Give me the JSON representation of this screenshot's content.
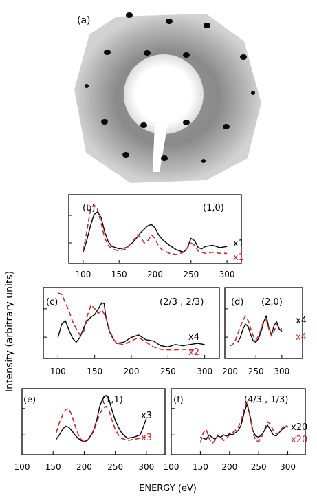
{
  "figure": {
    "ylabel": "Intensity (arbitrary units)",
    "xlabel": "ENERGY (eV)",
    "image_panel_label": "(a)"
  },
  "colors": {
    "experiment": "#000000",
    "theory": "#c62828"
  },
  "chart_data": [
    {
      "id": "b",
      "type": "line",
      "panel_label": "(b)",
      "beam": "(1,0)",
      "xlim": [
        80,
        320
      ],
      "ylim": [
        0,
        1
      ],
      "xticks": [
        100,
        150,
        200,
        250,
        300
      ],
      "scale_labels": [
        "x1",
        "x1"
      ],
      "series": [
        {
          "style": "solid",
          "x": [
            100,
            105,
            110,
            115,
            120,
            125,
            130,
            135,
            140,
            150,
            160,
            170,
            175,
            180,
            185,
            190,
            195,
            200,
            205,
            210,
            220,
            230,
            240,
            245,
            250,
            255,
            260,
            265,
            270,
            280,
            290,
            300
          ],
          "y": [
            0.1,
            0.3,
            0.55,
            0.75,
            0.8,
            0.7,
            0.45,
            0.28,
            0.2,
            0.16,
            0.18,
            0.28,
            0.36,
            0.44,
            0.5,
            0.56,
            0.58,
            0.52,
            0.4,
            0.32,
            0.22,
            0.14,
            0.1,
            0.18,
            0.34,
            0.3,
            0.18,
            0.16,
            0.2,
            0.22,
            0.18,
            0.2
          ]
        },
        {
          "style": "dashed",
          "x": [
            100,
            105,
            110,
            115,
            120,
            125,
            130,
            135,
            140,
            150,
            160,
            170,
            175,
            180,
            185,
            190,
            195,
            200,
            205,
            210,
            220,
            230,
            240,
            250,
            255,
            260,
            270,
            280,
            290,
            300
          ],
          "y": [
            0.12,
            0.45,
            0.82,
            0.92,
            0.84,
            0.6,
            0.34,
            0.22,
            0.16,
            0.12,
            0.16,
            0.3,
            0.4,
            0.36,
            0.26,
            0.3,
            0.4,
            0.34,
            0.2,
            0.14,
            0.08,
            0.06,
            0.1,
            0.26,
            0.22,
            0.12,
            0.08,
            0.1,
            0.08,
            0.08
          ]
        }
      ]
    },
    {
      "id": "c",
      "type": "line",
      "panel_label": "(c)",
      "beam": "(2/3 , 2/3)",
      "xlim": [
        80,
        320
      ],
      "ylim": [
        0,
        1
      ],
      "xticks": [
        100,
        150,
        200,
        250,
        300
      ],
      "scale_labels": [
        "x4",
        "x2"
      ],
      "series": [
        {
          "style": "solid",
          "x": [
            100,
            105,
            110,
            115,
            120,
            125,
            130,
            135,
            140,
            145,
            150,
            155,
            160,
            163,
            165,
            170,
            175,
            180,
            190,
            200,
            210,
            220,
            230,
            240,
            250,
            260,
            270,
            280,
            290,
            300
          ],
          "y": [
            0.26,
            0.48,
            0.54,
            0.38,
            0.24,
            0.18,
            0.26,
            0.42,
            0.54,
            0.6,
            0.64,
            0.74,
            0.84,
            0.82,
            0.62,
            0.36,
            0.24,
            0.16,
            0.18,
            0.26,
            0.3,
            0.22,
            0.2,
            0.12,
            0.1,
            0.14,
            0.12,
            0.14,
            0.16,
            0.14
          ]
        },
        {
          "style": "dashed",
          "x": [
            100,
            105,
            110,
            115,
            120,
            125,
            130,
            135,
            140,
            145,
            150,
            155,
            160,
            165,
            170,
            175,
            180,
            190,
            200,
            210,
            220,
            230,
            240,
            250,
            260,
            270,
            280,
            290
          ],
          "y": [
            1.0,
            0.98,
            0.84,
            0.7,
            0.52,
            0.4,
            0.3,
            0.36,
            0.62,
            0.8,
            0.74,
            0.66,
            0.72,
            0.6,
            0.4,
            0.24,
            0.16,
            0.14,
            0.2,
            0.26,
            0.18,
            0.1,
            0.06,
            0.05,
            0.05,
            0.06,
            0.05,
            0.05
          ]
        }
      ]
    },
    {
      "id": "d",
      "type": "line",
      "panel_label": "(d)",
      "beam": "(2,0)",
      "xlim": [
        190,
        340
      ],
      "ylim": [
        0,
        1
      ],
      "xticks": [
        200,
        250,
        300
      ],
      "scale_labels": [
        "x4",
        "x4"
      ],
      "series": [
        {
          "style": "solid",
          "x": [
            215,
            220,
            225,
            230,
            235,
            240,
            245,
            250,
            255,
            260,
            265,
            270,
            275,
            280,
            285,
            290,
            295,
            300
          ],
          "y": [
            0.18,
            0.26,
            0.4,
            0.48,
            0.44,
            0.3,
            0.2,
            0.18,
            0.24,
            0.36,
            0.52,
            0.62,
            0.42,
            0.3,
            0.46,
            0.52,
            0.4,
            0.36
          ]
        },
        {
          "style": "dashed",
          "x": [
            200,
            205,
            210,
            215,
            220,
            225,
            230,
            235,
            240,
            245,
            250,
            255,
            260,
            265,
            270,
            275,
            280,
            285,
            290,
            295,
            300
          ],
          "y": [
            0.12,
            0.14,
            0.2,
            0.32,
            0.44,
            0.54,
            0.62,
            0.54,
            0.4,
            0.28,
            0.22,
            0.28,
            0.4,
            0.54,
            0.56,
            0.4,
            0.28,
            0.36,
            0.48,
            0.42,
            0.4
          ]
        }
      ]
    },
    {
      "id": "e",
      "type": "line",
      "panel_label": "(e)",
      "beam": "(1,1)",
      "xlim": [
        100,
        330
      ],
      "ylim": [
        0,
        1
      ],
      "xticks": [
        100,
        150,
        200,
        250,
        300
      ],
      "scale_labels": [
        "x3",
        "x3"
      ],
      "series": [
        {
          "style": "solid",
          "x": [
            155,
            160,
            165,
            170,
            175,
            180,
            185,
            190,
            195,
            200,
            205,
            210,
            215,
            220,
            225,
            230,
            235,
            240,
            245,
            250,
            255,
            260,
            265,
            270,
            280,
            290,
            295,
            300
          ],
          "y": [
            0.18,
            0.26,
            0.36,
            0.42,
            0.4,
            0.34,
            0.26,
            0.2,
            0.16,
            0.14,
            0.16,
            0.24,
            0.34,
            0.52,
            0.78,
            0.92,
            0.98,
            0.9,
            0.7,
            0.52,
            0.4,
            0.3,
            0.24,
            0.2,
            0.22,
            0.26,
            0.4,
            0.56
          ]
        },
        {
          "style": "dashed",
          "x": [
            155,
            160,
            165,
            170,
            175,
            180,
            185,
            190,
            195,
            200,
            205,
            210,
            215,
            220,
            225,
            230,
            235,
            240,
            245,
            250,
            255,
            260,
            265,
            270,
            280,
            290,
            300
          ],
          "y": [
            0.3,
            0.48,
            0.62,
            0.72,
            0.74,
            0.62,
            0.44,
            0.28,
            0.18,
            0.14,
            0.16,
            0.22,
            0.32,
            0.48,
            0.64,
            0.74,
            0.78,
            0.7,
            0.52,
            0.36,
            0.26,
            0.2,
            0.18,
            0.16,
            0.18,
            0.2,
            0.22
          ]
        }
      ]
    },
    {
      "id": "f",
      "type": "line",
      "panel_label": "(f)",
      "beam": "(4/3 , 1/3)",
      "xlim": [
        100,
        330
      ],
      "ylim": [
        0,
        1
      ],
      "xticks": [
        100,
        150,
        200,
        250,
        300
      ],
      "scale_labels": [
        "x20",
        "x20"
      ],
      "series": [
        {
          "style": "solid",
          "x": [
            150,
            155,
            160,
            165,
            170,
            175,
            180,
            185,
            190,
            195,
            200,
            205,
            210,
            215,
            220,
            225,
            230,
            235,
            240,
            245,
            250,
            255,
            260,
            265,
            270,
            275,
            280,
            285,
            290,
            295,
            300
          ],
          "y": [
            0.22,
            0.2,
            0.18,
            0.26,
            0.22,
            0.18,
            0.24,
            0.22,
            0.26,
            0.24,
            0.28,
            0.26,
            0.3,
            0.34,
            0.44,
            0.66,
            0.82,
            0.62,
            0.34,
            0.24,
            0.22,
            0.26,
            0.34,
            0.44,
            0.36,
            0.26,
            0.24,
            0.3,
            0.36,
            0.4,
            0.42
          ]
        },
        {
          "style": "dashed",
          "x": [
            150,
            155,
            160,
            165,
            170,
            175,
            180,
            185,
            190,
            195,
            200,
            205,
            210,
            215,
            220,
            225,
            230,
            235,
            240,
            245,
            250,
            255,
            260,
            265,
            270,
            275,
            280,
            285,
            290,
            295,
            300
          ],
          "y": [
            0.12,
            0.3,
            0.36,
            0.2,
            0.1,
            0.16,
            0.26,
            0.22,
            0.16,
            0.2,
            0.26,
            0.3,
            0.34,
            0.4,
            0.52,
            0.72,
            0.86,
            0.6,
            0.3,
            0.16,
            0.14,
            0.22,
            0.36,
            0.5,
            0.46,
            0.34,
            0.28,
            0.3,
            0.38,
            0.44,
            0.4
          ]
        }
      ]
    }
  ]
}
